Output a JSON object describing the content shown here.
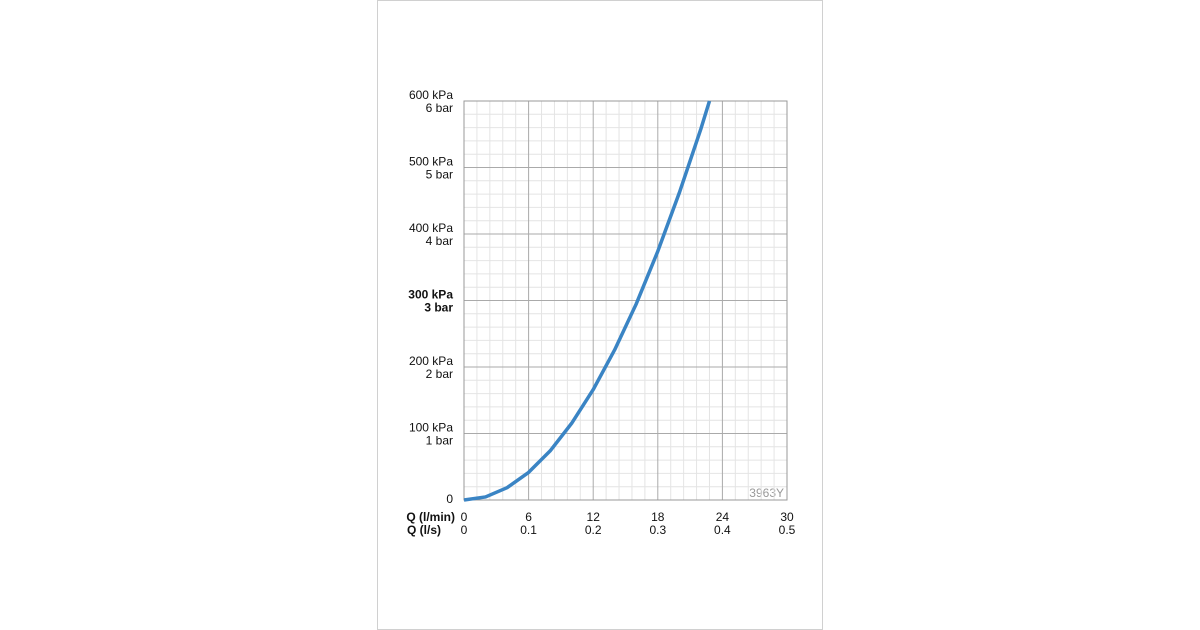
{
  "chart_data": {
    "type": "line",
    "x_label": "Q (l/min)",
    "x2_label": "Q (l/s)",
    "annotation": "3963Y",
    "x": [
      0,
      2,
      4,
      6,
      8,
      10,
      12,
      14,
      16,
      18,
      20,
      22,
      22.8
    ],
    "series": [
      {
        "color": "#3a84c4",
        "values": [
          0,
          4.6,
          18.5,
          41.5,
          73.8,
          115.4,
          166,
          226,
          295,
          374,
          462,
          558,
          600
        ]
      }
    ],
    "xlim": [
      0,
      30
    ],
    "ylim": [
      0,
      600
    ],
    "xticks": [
      0,
      6,
      12,
      18,
      24,
      30
    ],
    "x2ticks": [
      0,
      {
        "value": 6,
        "label": "0.1"
      },
      {
        "value": 12,
        "label": "0.2"
      },
      {
        "value": 18,
        "label": "0.3"
      },
      {
        "value": 24,
        "label": "0.4"
      },
      {
        "value": 30,
        "label": "0.5"
      }
    ],
    "yticks": [
      0,
      {
        "value": 100,
        "label": "100 kPa"
      },
      {
        "value": 200,
        "label": "200 kPa"
      },
      {
        "value": 300,
        "label": "300 kPa"
      },
      {
        "value": 400,
        "label": "400 kPa"
      },
      {
        "value": 500,
        "label": "500 kPa"
      },
      {
        "value": 600,
        "label": "600 kPa"
      }
    ],
    "ytick_bar_labels": [
      {
        "value": 100,
        "label": "1 bar"
      },
      {
        "value": 200,
        "label": "2 bar"
      },
      {
        "value": 300,
        "label": "3 bar"
      },
      {
        "value": 400,
        "label": "4 bar"
      },
      {
        "value": 500,
        "label": "5 bar"
      },
      {
        "value": 600,
        "label": "6 bar"
      }
    ],
    "highlight_ytick": 300,
    "xminorticks": [
      1.2,
      2.4,
      3.6,
      4.8,
      7.2,
      8.4,
      9.6,
      10.8,
      13.2,
      14.4,
      15.6,
      16.8,
      19.2,
      20.4,
      21.6,
      22.8,
      25.2,
      26.4,
      27.6,
      28.8
    ],
    "yminorticks": [
      20,
      40,
      60,
      80,
      120,
      140,
      160,
      180,
      220,
      240,
      260,
      280,
      320,
      340,
      360,
      380,
      420,
      440,
      460,
      480,
      520,
      540,
      560,
      580
    ],
    "grid": true
  }
}
